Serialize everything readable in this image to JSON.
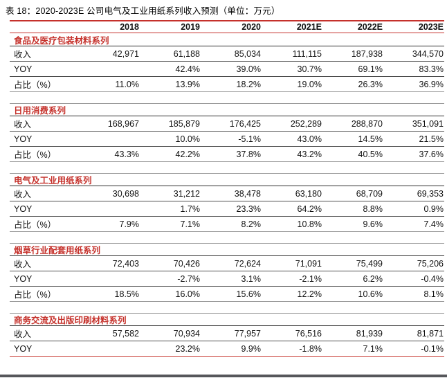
{
  "title": "表 18：2020-2023E 公司电气及工业用纸系列收入预测（单位：万元）",
  "columns": [
    "2018",
    "2019",
    "2020",
    "2021E",
    "2022E",
    "2023E"
  ],
  "sections": [
    {
      "name": "食品及医疗包装材料系列",
      "rows": [
        {
          "label": "收入",
          "values": [
            "42,971",
            "61,188",
            "85,034",
            "111,115",
            "187,938",
            "344,570"
          ]
        },
        {
          "label": "YOY",
          "values": [
            "",
            "42.4%",
            "39.0%",
            "30.7%",
            "69.1%",
            "83.3%"
          ]
        },
        {
          "label": "占比（%）",
          "values": [
            "11.0%",
            "13.9%",
            "18.2%",
            "19.0%",
            "26.3%",
            "36.9%"
          ]
        }
      ]
    },
    {
      "name": "日用消费系列",
      "rows": [
        {
          "label": "收入",
          "values": [
            "168,967",
            "185,879",
            "176,425",
            "252,289",
            "288,870",
            "351,091"
          ]
        },
        {
          "label": "YOY",
          "values": [
            "",
            "10.0%",
            "-5.1%",
            "43.0%",
            "14.5%",
            "21.5%"
          ]
        },
        {
          "label": "占比（%）",
          "values": [
            "43.3%",
            "42.2%",
            "37.8%",
            "43.2%",
            "40.5%",
            "37.6%"
          ]
        }
      ]
    },
    {
      "name": "电气及工业用纸系列",
      "rows": [
        {
          "label": "收入",
          "values": [
            "30,698",
            "31,212",
            "38,478",
            "63,180",
            "68,709",
            "69,353"
          ]
        },
        {
          "label": "YOY",
          "values": [
            "",
            "1.7%",
            "23.3%",
            "64.2%",
            "8.8%",
            "0.9%"
          ]
        },
        {
          "label": "占比（%）",
          "values": [
            "7.9%",
            "7.1%",
            "8.2%",
            "10.8%",
            "9.6%",
            "7.4%"
          ]
        }
      ]
    },
    {
      "name": "烟草行业配套用纸系列",
      "rows": [
        {
          "label": "收入",
          "values": [
            "72,403",
            "70,426",
            "72,624",
            "71,091",
            "75,499",
            "75,206"
          ]
        },
        {
          "label": "YOY",
          "values": [
            "",
            "-2.7%",
            "3.1%",
            "-2.1%",
            "6.2%",
            "-0.4%"
          ]
        },
        {
          "label": "占比（%）",
          "values": [
            "18.5%",
            "16.0%",
            "15.6%",
            "12.2%",
            "10.6%",
            "8.1%"
          ]
        }
      ]
    },
    {
      "name": "商务交流及出版印刷材料系列",
      "rows": [
        {
          "label": "收入",
          "values": [
            "57,582",
            "70,934",
            "77,957",
            "76,516",
            "81,939",
            "81,871"
          ]
        },
        {
          "label": "YOY",
          "values": [
            "",
            "23.2%",
            "9.9%",
            "-1.8%",
            "7.1%",
            "-0.1%"
          ]
        }
      ]
    }
  ],
  "colors": {
    "accent_red": "#c5312b",
    "grid_dark": "#4d4d4d",
    "grid_light": "#9c9c9c",
    "bottom_bar": "#56575b"
  }
}
